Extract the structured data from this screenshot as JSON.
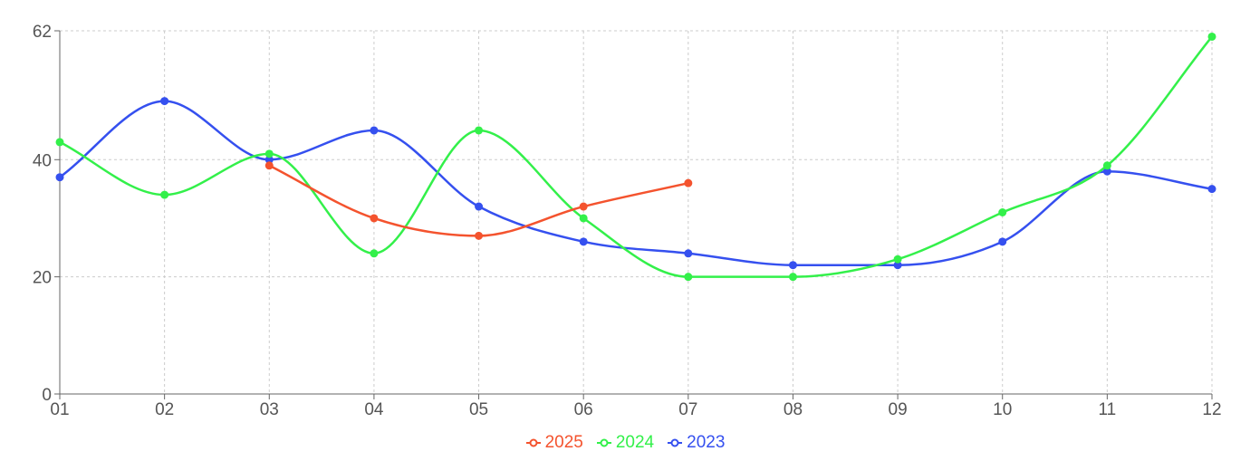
{
  "chart_data": {
    "type": "line",
    "categories": [
      "01",
      "02",
      "03",
      "04",
      "05",
      "06",
      "07",
      "08",
      "09",
      "10",
      "11",
      "12"
    ],
    "ylim": [
      0,
      62
    ],
    "y_ticks": [
      "0",
      "20",
      "40",
      "62"
    ],
    "grid": true,
    "legend_position": "bottom-center",
    "series": [
      {
        "name": "2025",
        "color": "#f4532e",
        "values": [
          null,
          null,
          39,
          30,
          27,
          32,
          36,
          null,
          null,
          null,
          null,
          null
        ]
      },
      {
        "name": "2024",
        "color": "#33f04a",
        "values": [
          43,
          34,
          41,
          24,
          45,
          30,
          20,
          20,
          23,
          31,
          39,
          61
        ]
      },
      {
        "name": "2023",
        "color": "#3550ef",
        "values": [
          37,
          50,
          40,
          45,
          32,
          26,
          24,
          22,
          22,
          26,
          38,
          35
        ]
      }
    ]
  }
}
